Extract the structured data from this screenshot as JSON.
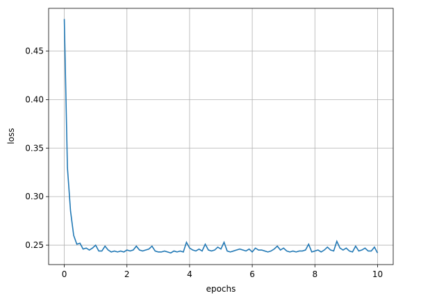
{
  "chart_data": {
    "type": "line",
    "xlabel": "epochs",
    "ylabel": "loss",
    "color": "#1f77b4",
    "grid": true,
    "xlim": [
      -0.5,
      10.5
    ],
    "ylim": [
      0.23,
      0.494
    ],
    "xticks": [
      0,
      2,
      4,
      6,
      8,
      10
    ],
    "yticks": [
      0.25,
      {
        "value": 0.3,
        "label": "0.30"
      },
      0.35,
      {
        "value": 0.4,
        "label": "0.40"
      },
      0.45
    ],
    "x": [
      0,
      0.1,
      0.2,
      0.3,
      0.4,
      0.5,
      0.6,
      0.7,
      0.8,
      0.9,
      1,
      1.1,
      1.2,
      1.3,
      1.4,
      1.5,
      1.6,
      1.7,
      1.8,
      1.9,
      2,
      2.1,
      2.2,
      2.3,
      2.4,
      2.5,
      2.6,
      2.7,
      2.8,
      2.9,
      3,
      3.1,
      3.2,
      3.3,
      3.4,
      3.5,
      3.6,
      3.7,
      3.8,
      3.9,
      4,
      4.1,
      4.2,
      4.3,
      4.4,
      4.5,
      4.6,
      4.7,
      4.8,
      4.9,
      5,
      5.1,
      5.2,
      5.3,
      5.4,
      5.5,
      5.6,
      5.7,
      5.8,
      5.9,
      6,
      6.1,
      6.2,
      6.3,
      6.4,
      6.5,
      6.6,
      6.7,
      6.8,
      6.9,
      7,
      7.1,
      7.2,
      7.3,
      7.4,
      7.5,
      7.6,
      7.7,
      7.8,
      7.9,
      8,
      8.1,
      8.2,
      8.3,
      8.4,
      8.5,
      8.6,
      8.7,
      8.8,
      8.9,
      9,
      9.1,
      9.2,
      9.3,
      9.4,
      9.5,
      9.6,
      9.7,
      9.8,
      9.9,
      10
    ],
    "values": [
      0.483,
      0.33,
      0.285,
      0.26,
      0.251,
      0.252,
      0.246,
      0.247,
      0.245,
      0.247,
      0.25,
      0.244,
      0.244,
      0.249,
      0.245,
      0.243,
      0.244,
      0.243,
      0.244,
      0.243,
      0.245,
      0.244,
      0.245,
      0.249,
      0.245,
      0.244,
      0.245,
      0.246,
      0.249,
      0.244,
      0.243,
      0.243,
      0.244,
      0.243,
      0.242,
      0.244,
      0.243,
      0.244,
      0.243,
      0.253,
      0.247,
      0.245,
      0.244,
      0.246,
      0.244,
      0.251,
      0.245,
      0.244,
      0.245,
      0.248,
      0.246,
      0.253,
      0.244,
      0.243,
      0.244,
      0.245,
      0.246,
      0.245,
      0.244,
      0.246,
      0.243,
      0.247,
      0.245,
      0.245,
      0.244,
      0.243,
      0.244,
      0.246,
      0.249,
      0.245,
      0.247,
      0.244,
      0.243,
      0.244,
      0.243,
      0.244,
      0.244,
      0.245,
      0.251,
      0.243,
      0.244,
      0.245,
      0.243,
      0.245,
      0.248,
      0.245,
      0.244,
      0.254,
      0.247,
      0.245,
      0.247,
      0.244,
      0.243,
      0.249,
      0.244,
      0.245,
      0.247,
      0.244,
      0.244,
      0.248,
      0.242
    ]
  }
}
